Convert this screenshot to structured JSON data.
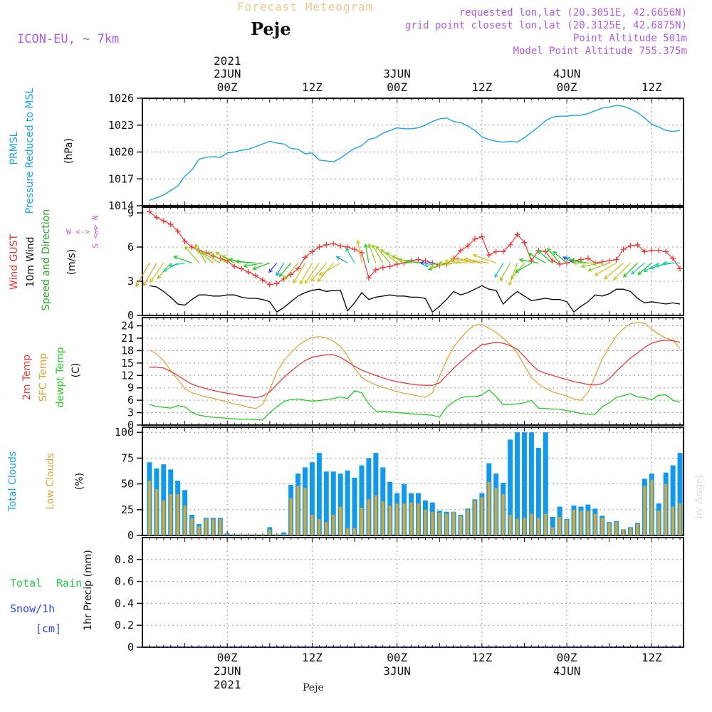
{
  "header": {
    "product_title": "Forecast Meteogram",
    "station": "Peje",
    "model": "ICON-EU, ~ 7km",
    "requested": "requested lon,lat (20.3051E, 42.6656N)",
    "gridpoint": "grid point closest lon,lat (20.3125E, 42.6875N)",
    "altitude": "Point Altitude 501m",
    "model_altitude": "Model Point Altitude 755.375m",
    "watermark": "by Angel",
    "footer_station": "Peje"
  },
  "colors": {
    "pressure": "#1aa6e6",
    "gust": "#ee3333",
    "wind": "#000000",
    "temp": "#e83a3a",
    "sfc": "#e0a030",
    "dewpt": "#22cc22",
    "total_clouds": "#1199ee",
    "low_clouds": "#d4a838",
    "model": "#b05ce0",
    "rain": "#22cc44",
    "snow": "#3344ee"
  },
  "time_axis": {
    "year": "2021",
    "top_ticks": [
      {
        "hour": 24,
        "label": "00Z",
        "day": "2JUN",
        "year": "2021"
      },
      {
        "hour": 36,
        "label": "12Z"
      },
      {
        "hour": 48,
        "label": "00Z",
        "day": "3JUN"
      },
      {
        "hour": 60,
        "label": "12Z"
      },
      {
        "hour": 72,
        "label": "00Z",
        "day": "4JUN"
      },
      {
        "hour": 84,
        "label": "12Z"
      }
    ],
    "bottom_ticks": [
      {
        "hour": 24,
        "label": "00Z",
        "day": "2JUN",
        "year": "2021"
      },
      {
        "hour": 36,
        "label": "12Z"
      },
      {
        "hour": 48,
        "label": "00Z",
        "day": "3JUN"
      },
      {
        "hour": 60,
        "label": "12Z"
      },
      {
        "hour": 72,
        "label": "00Z",
        "day": "4JUN"
      },
      {
        "hour": 84,
        "label": "12Z"
      }
    ]
  },
  "panel_labels": {
    "pressure": {
      "name": "PRMSL",
      "desc": "Pressure Reduced to MSL",
      "unit": "(hPa)"
    },
    "wind": {
      "gust": "Wind GUST",
      "wind": "10m Wind",
      "dir": "Speed and Direction",
      "unit": "(m/s)",
      "compass_ns": "S <-> N",
      "compass_we": "W <-> E"
    },
    "temp": {
      "t2m": "2m Temp",
      "sfc": "SFC Temp",
      "dew": "dewpt Temp",
      "unit": "(C)"
    },
    "clouds": {
      "total": "Total Clouds",
      "low": "Low Clouds",
      "unit": "(%)"
    },
    "precip": {
      "total": "Total",
      "rain": "Rain",
      "snow": "Snow/1h",
      "cm": "[cm]",
      "axis": "1hr Precip (mm)"
    }
  },
  "chart_data": [
    {
      "type": "line",
      "title": "PRMSL Pressure Reduced to MSL",
      "ylabel": "(hPa)",
      "ylim": [
        1014,
        1026
      ],
      "yticks": [
        1014,
        1017,
        1020,
        1023,
        1026
      ],
      "x": [
        13,
        14,
        15,
        16,
        17,
        18,
        19,
        20,
        21,
        22,
        23,
        24,
        25,
        26,
        27,
        28,
        29,
        30,
        31,
        32,
        33,
        34,
        35,
        36,
        37,
        38,
        39,
        40,
        41,
        42,
        43,
        44,
        45,
        46,
        47,
        48,
        49,
        50,
        51,
        52,
        53,
        54,
        55,
        56,
        57,
        58,
        59,
        60,
        61,
        62,
        63,
        64,
        65,
        66,
        67,
        68,
        69,
        70,
        71,
        72,
        73,
        74,
        75,
        76,
        77,
        78,
        79,
        80,
        81,
        82,
        83,
        84,
        85,
        86,
        87,
        88
      ],
      "series": [
        {
          "name": "PRMSL",
          "values": [
            1014.6,
            1014.9,
            1015.2,
            1015.7,
            1016.2,
            1017.3,
            1018.0,
            1019.2,
            1019.4,
            1019.5,
            1019.4,
            1019.9,
            1020.0,
            1020.2,
            1020.3,
            1020.6,
            1020.9,
            1021.2,
            1021.0,
            1020.9,
            1020.4,
            1020.3,
            1019.8,
            1019.9,
            1019.1,
            1019.0,
            1018.9,
            1019.3,
            1019.9,
            1020.4,
            1020.7,
            1021.4,
            1021.6,
            1022.1,
            1022.4,
            1022.7,
            1022.6,
            1022.6,
            1022.7,
            1023.0,
            1023.4,
            1023.7,
            1023.8,
            1023.4,
            1023.3,
            1022.9,
            1022.4,
            1021.7,
            1021.4,
            1021.2,
            1021.1,
            1021.2,
            1021.1,
            1021.6,
            1022.2,
            1022.8,
            1023.5,
            1023.9,
            1024.0,
            1024.0,
            1024.1,
            1024.1,
            1024.3,
            1024.6,
            1024.9,
            1025.0,
            1025.2,
            1025.1,
            1024.8,
            1024.4,
            1023.8,
            1023.1,
            1022.8,
            1022.4,
            1022.3,
            1022.4
          ]
        }
      ]
    },
    {
      "type": "line",
      "title": "Wind GUST / 10m Wind Speed and Direction",
      "ylabel": "(m/s)",
      "ylim": [
        0,
        9.5
      ],
      "yticks": [
        0,
        3,
        6,
        9
      ],
      "x": [
        13,
        14,
        15,
        16,
        17,
        18,
        19,
        20,
        21,
        22,
        23,
        24,
        25,
        26,
        27,
        28,
        29,
        30,
        31,
        32,
        33,
        34,
        35,
        36,
        37,
        38,
        39,
        40,
        41,
        42,
        43,
        44,
        45,
        46,
        47,
        48,
        49,
        50,
        51,
        52,
        53,
        54,
        55,
        56,
        57,
        58,
        59,
        60,
        61,
        62,
        63,
        64,
        65,
        66,
        67,
        68,
        69,
        70,
        71,
        72,
        73,
        74,
        75,
        76,
        77,
        78,
        79,
        80,
        81,
        82,
        83,
        84,
        85,
        86,
        87,
        88
      ],
      "series": [
        {
          "name": "Wind GUST",
          "values": [
            9.1,
            8.6,
            8.3,
            8.0,
            7.4,
            6.5,
            6.0,
            5.7,
            5.5,
            5.2,
            5.0,
            4.8,
            4.3,
            4.1,
            3.8,
            3.5,
            3.1,
            2.7,
            2.8,
            3.2,
            3.6,
            4.1,
            5.1,
            5.6,
            6.0,
            6.2,
            6.3,
            6.1,
            6.0,
            5.8,
            5.5,
            3.3,
            4.0,
            4.2,
            4.3,
            4.5,
            4.6,
            4.8,
            4.9,
            4.8,
            4.6,
            4.4,
            4.5,
            5.0,
            5.7,
            6.1,
            6.7,
            6.9,
            5.3,
            5.6,
            5.6,
            6.2,
            7.1,
            6.4,
            4.8,
            5.7,
            5.6,
            4.8,
            4.5,
            4.6,
            4.8,
            4.9,
            5.0,
            4.6,
            4.7,
            4.8,
            4.9,
            5.8,
            6.1,
            6.2,
            5.6,
            5.7,
            5.7,
            5.6,
            5.0,
            4.1
          ]
        },
        {
          "name": "10m Wind",
          "values": [
            2.6,
            2.5,
            2.1,
            1.6,
            1.0,
            0.9,
            1.4,
            1.8,
            1.8,
            1.7,
            1.7,
            1.8,
            1.8,
            1.6,
            1.5,
            1.5,
            1.4,
            1.2,
            0.3,
            0.7,
            1.2,
            1.7,
            2.0,
            2.2,
            2.3,
            2.1,
            2.2,
            2.2,
            0.4,
            1.1,
            2.0,
            1.4,
            1.6,
            1.7,
            1.8,
            1.7,
            1.7,
            1.6,
            1.6,
            1.5,
            0.3,
            0.8,
            1.4,
            2.1,
            1.8,
            2.0,
            2.3,
            2.6,
            2.3,
            2.2,
            1.0,
            1.6,
            2.1,
            1.7,
            1.3,
            1.4,
            1.5,
            1.4,
            1.4,
            1.2,
            0.3,
            0.8,
            1.2,
            1.8,
            1.7,
            1.9,
            2.3,
            2.3,
            2.1,
            1.5,
            1.1,
            1.2,
            1.1,
            1.0,
            1.1,
            1.0
          ]
        }
      ],
      "direction_deg": [
        30,
        30,
        35,
        40,
        60,
        80,
        110,
        140,
        150,
        130,
        120,
        120,
        120,
        110,
        100,
        95,
        80,
        70,
        40,
        30,
        40,
        40,
        30,
        30,
        35,
        40,
        40,
        60,
        120,
        150,
        170,
        170,
        160,
        150,
        140,
        130,
        120,
        110,
        100,
        95,
        90,
        80,
        70,
        80,
        90,
        95,
        100,
        100,
        100,
        110,
        30,
        30,
        20,
        40,
        60,
        100,
        120,
        130,
        140,
        130,
        120,
        110,
        100,
        90,
        80,
        70,
        60,
        50,
        45,
        45,
        50,
        50,
        60,
        70,
        80,
        90
      ]
    },
    {
      "type": "line",
      "title": "2m Temp / SFC Temp / dewpt Temp",
      "ylabel": "(C)",
      "ylim": [
        0,
        26
      ],
      "yticks": [
        0,
        3,
        6,
        9,
        12,
        15,
        18,
        21,
        24
      ],
      "x": [
        13,
        14,
        15,
        16,
        17,
        18,
        19,
        20,
        21,
        22,
        23,
        24,
        25,
        26,
        27,
        28,
        29,
        30,
        31,
        32,
        33,
        34,
        35,
        36,
        37,
        38,
        39,
        40,
        41,
        42,
        43,
        44,
        45,
        46,
        47,
        48,
        49,
        50,
        51,
        52,
        53,
        54,
        55,
        56,
        57,
        58,
        59,
        60,
        61,
        62,
        63,
        64,
        65,
        66,
        67,
        68,
        69,
        70,
        71,
        72,
        73,
        74,
        75,
        76,
        77,
        78,
        79,
        80,
        81,
        82,
        83,
        84,
        85,
        86,
        87,
        88
      ],
      "series": [
        {
          "name": "2m Temp",
          "values": [
            14,
            14,
            13.8,
            13,
            12,
            10.9,
            9.9,
            9.3,
            8.8,
            8.4,
            8.0,
            7.7,
            7.4,
            7.1,
            6.9,
            6.6,
            7.0,
            8.0,
            9.8,
            11.5,
            13.0,
            14.4,
            15.6,
            16.4,
            16.7,
            17.0,
            17.0,
            16.4,
            15.3,
            14.2,
            13.3,
            12.6,
            12.0,
            11.4,
            10.9,
            10.5,
            10.2,
            9.9,
            9.7,
            9.6,
            9.6,
            10.2,
            12.0,
            13.7,
            15.3,
            16.8,
            18.2,
            19.4,
            19.7,
            20.0,
            19.8,
            19.2,
            18.3,
            16.6,
            14.6,
            13.2,
            12.5,
            12.0,
            11.5,
            11.0,
            10.5,
            10.2,
            9.8,
            9.7,
            10.0,
            11.2,
            13.0,
            14.6,
            16.2,
            17.4,
            18.8,
            19.8,
            20.3,
            20.5,
            20.4,
            20.0
          ]
        },
        {
          "name": "SFC Temp",
          "values": [
            18.2,
            17.2,
            15.6,
            13.2,
            11.0,
            8.8,
            7.8,
            7.3,
            6.8,
            6.5,
            6.0,
            5.6,
            5.1,
            4.8,
            4.3,
            4.0,
            5.0,
            8.5,
            12.8,
            15.6,
            17.5,
            19.2,
            20.4,
            21.2,
            21.4,
            21.1,
            20.3,
            19.0,
            16.7,
            13.7,
            11.5,
            10.5,
            9.7,
            9.1,
            8.6,
            8.1,
            7.7,
            7.4,
            7.0,
            6.7,
            7.8,
            11.8,
            15.7,
            18.9,
            21.0,
            22.9,
            24.2,
            24.3,
            23.4,
            22.4,
            21.0,
            19.5,
            17.4,
            14.4,
            11.5,
            9.9,
            8.9,
            8.0,
            7.5,
            7.0,
            6.3,
            6.0,
            7.9,
            11.9,
            15.9,
            18.9,
            21.5,
            23.3,
            24.5,
            24.8,
            24.6,
            23.2,
            22.0,
            21.0,
            20.5,
            18.5
          ]
        },
        {
          "name": "dewpt Temp",
          "values": [
            5.0,
            4.5,
            4.3,
            4.1,
            4.7,
            4.4,
            3.1,
            2.4,
            2.1,
            1.9,
            1.8,
            1.6,
            1.5,
            1.4,
            1.4,
            1.3,
            1.2,
            3.0,
            4.4,
            5.7,
            6.2,
            6.3,
            6.0,
            5.8,
            5.9,
            6.2,
            6.4,
            6.8,
            6.4,
            8.3,
            7.8,
            5.1,
            3.4,
            3.3,
            3.2,
            3.0,
            2.9,
            2.7,
            2.6,
            2.5,
            2.4,
            1.9,
            4.3,
            5.6,
            6.6,
            6.9,
            6.8,
            7.3,
            8.5,
            6.9,
            4.9,
            5.0,
            5.1,
            5.4,
            6.0,
            4.1,
            4.0,
            3.9,
            3.8,
            3.5,
            3.2,
            2.8,
            2.6,
            2.6,
            4.4,
            5.4,
            6.7,
            7.1,
            7.6,
            6.8,
            6.6,
            6.1,
            7.2,
            7.3,
            6.0,
            5.5
          ]
        }
      ]
    },
    {
      "type": "bar",
      "title": "Total Clouds / Low Clouds",
      "ylabel": "(%)",
      "ylim": [
        0,
        105
      ],
      "yticks": [
        0,
        25,
        50,
        75,
        100
      ],
      "x": [
        13,
        14,
        15,
        16,
        17,
        18,
        19,
        20,
        21,
        22,
        23,
        24,
        25,
        26,
        27,
        28,
        29,
        30,
        31,
        32,
        33,
        34,
        35,
        36,
        37,
        38,
        39,
        40,
        41,
        42,
        43,
        44,
        45,
        46,
        47,
        48,
        49,
        50,
        51,
        52,
        53,
        54,
        55,
        56,
        57,
        58,
        59,
        60,
        61,
        62,
        63,
        64,
        65,
        66,
        67,
        68,
        69,
        70,
        71,
        72,
        73,
        74,
        75,
        76,
        77,
        78,
        79,
        80,
        81,
        82,
        83,
        84,
        85,
        86,
        87,
        88
      ],
      "series": [
        {
          "name": "Total Clouds",
          "values": [
            71,
            65,
            69,
            64,
            53,
            44,
            20,
            11,
            17,
            17,
            17,
            2,
            1,
            1,
            1,
            1,
            1,
            8,
            1,
            3,
            49,
            60,
            66,
            71,
            80,
            62,
            62,
            60,
            63,
            56,
            68,
            75,
            80,
            66,
            52,
            41,
            50,
            41,
            41,
            34,
            32,
            24,
            23,
            23,
            20,
            26,
            35,
            41,
            70,
            60,
            51,
            93,
            100,
            100,
            100,
            85,
            100,
            18,
            28,
            16,
            29,
            28,
            30,
            26,
            19,
            13,
            14,
            6,
            8,
            12,
            55,
            60,
            31,
            61,
            68,
            80
          ]
        },
        {
          "name": "Low Clouds",
          "values": [
            53,
            45,
            34,
            40,
            40,
            29,
            17,
            9,
            16,
            16,
            16,
            1,
            1,
            1,
            1,
            1,
            1,
            6,
            1,
            1,
            36,
            48,
            46,
            20,
            16,
            13,
            20,
            28,
            7,
            7,
            27,
            35,
            39,
            33,
            29,
            31,
            31,
            32,
            31,
            25,
            23,
            22,
            21,
            23,
            19,
            25,
            34,
            37,
            52,
            46,
            40,
            20,
            16,
            17,
            21,
            17,
            21,
            8,
            18,
            15,
            25,
            24,
            24,
            21,
            17,
            12,
            13,
            6,
            7,
            11,
            48,
            54,
            24,
            50,
            28,
            31
          ]
        }
      ]
    },
    {
      "type": "bar",
      "title": "Total Rain / Snow 1h",
      "ylabel": "1hr Precip (mm)",
      "ylim": [
        0,
        1
      ],
      "yticks": [
        0,
        0.2,
        0.4,
        0.6,
        0.8
      ],
      "ytick_labels": [
        "0",
        "0.2",
        "0.4",
        "0.6",
        "0.8"
      ],
      "series": [
        {
          "name": "Total Rain",
          "values": []
        },
        {
          "name": "Snow/1h",
          "values": []
        }
      ]
    }
  ]
}
